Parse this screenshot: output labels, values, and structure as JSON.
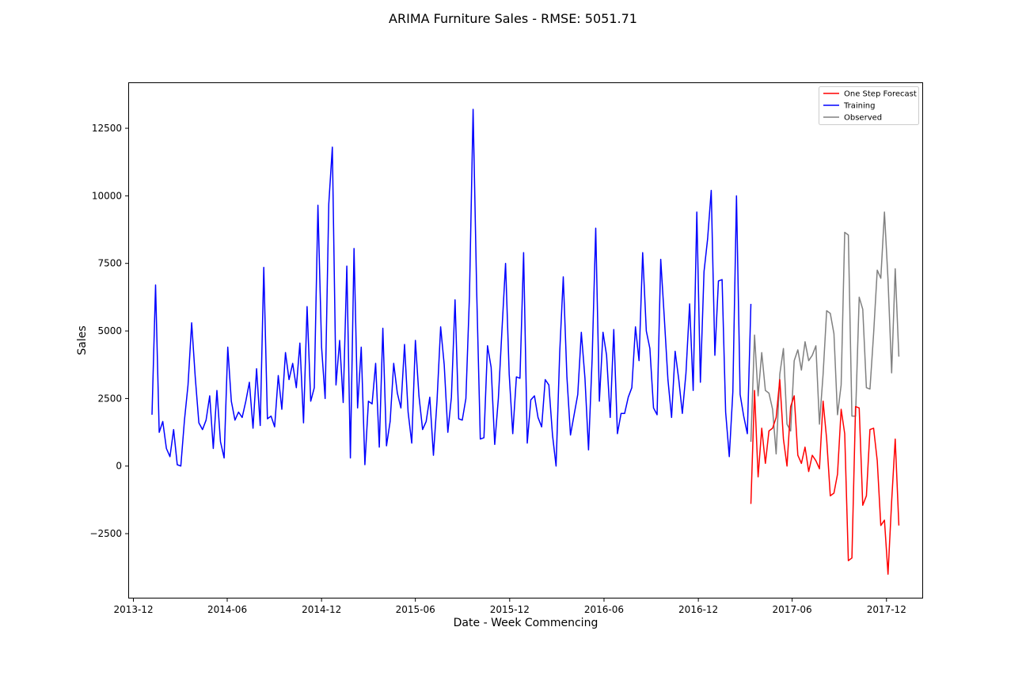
{
  "chart_data": {
    "type": "line",
    "title": "ARIMA Furniture Sales - RMSE: 5051.71",
    "xlabel": "Date - Week Commencing",
    "ylabel": "Sales",
    "x_ticks": [
      "2013-12",
      "2014-06",
      "2014-12",
      "2015-06",
      "2015-12",
      "2016-06",
      "2016-12",
      "2017-06",
      "2017-12"
    ],
    "y_ticks": [
      -2500,
      0,
      2500,
      5000,
      7500,
      10000,
      12500
    ],
    "y_tick_labels": [
      "−2500",
      "0",
      "2500",
      "5000",
      "7500",
      "10000",
      "12500"
    ],
    "xlim": [
      "2013-11-21",
      "2018-02-10"
    ],
    "ylim": [
      -4900,
      14200
    ],
    "grid": false,
    "legend_position": "top-right",
    "series": [
      {
        "name": "One Step Forecast",
        "color": "#ff0000",
        "start_date": "2017-03-13",
        "step_days": 7,
        "values": [
          -1400,
          2800,
          -400,
          1400,
          100,
          1300,
          1400,
          1800,
          3200,
          1000,
          0,
          2200,
          2600,
          400,
          100,
          700,
          -200,
          400,
          200,
          -100,
          2400,
          1000,
          -1100,
          -1000,
          -300,
          2100,
          1200,
          -3500,
          -3400,
          2200,
          2150,
          -1450,
          -1100,
          1350,
          1400,
          200,
          -2200,
          -2000,
          -4000,
          -1300,
          1000,
          -2200
        ]
      },
      {
        "name": "Training",
        "color": "#0000ff",
        "start_date": "2014-01-06",
        "step_days": 7,
        "values": [
          1900,
          6700,
          1250,
          1650,
          650,
          350,
          1350,
          50,
          0,
          1700,
          3000,
          5300,
          3300,
          1600,
          1350,
          1700,
          2600,
          650,
          2800,
          900,
          300,
          4400,
          2400,
          1700,
          2000,
          1800,
          2400,
          3100,
          1400,
          3600,
          1500,
          7350,
          1750,
          1850,
          1450,
          3350,
          2100,
          4200,
          3200,
          3800,
          2900,
          4550,
          1600,
          5900,
          2400,
          2900,
          9650,
          4400,
          2500,
          9700,
          11800,
          3000,
          4650,
          2350,
          7400,
          300,
          8050,
          2150,
          4400,
          50,
          2400,
          2300,
          3800,
          700,
          5100,
          750,
          1650,
          3800,
          2700,
          2150,
          4500,
          2000,
          850,
          4650,
          2600,
          1350,
          1650,
          2550,
          400,
          2400,
          5150,
          3750,
          1250,
          2550,
          6150,
          1750,
          1700,
          2500,
          6300,
          13200,
          6500,
          1000,
          1050,
          4450,
          3650,
          800,
          2500,
          5000,
          7500,
          3400,
          1200,
          3300,
          3250,
          7900,
          850,
          2450,
          2600,
          1800,
          1450,
          3200,
          3000,
          1150,
          0,
          4200,
          7000,
          3300,
          1150,
          1900,
          2650,
          4950,
          3250,
          600,
          4000,
          8800,
          2400,
          4950,
          4100,
          1800,
          5050,
          1200,
          1950,
          1950,
          2550,
          2900,
          5150,
          3900,
          7900,
          5000,
          4350,
          2150,
          1900,
          7650,
          5500,
          3200,
          1800,
          4250,
          3200,
          1950,
          3450,
          6000,
          2800,
          9400,
          3100,
          7200,
          8400,
          10200,
          4100,
          6850,
          6900,
          2000,
          350,
          2750,
          10000,
          2650,
          1850,
          1200,
          6000
        ]
      },
      {
        "name": "Observed",
        "color": "#808080",
        "start_date": "2017-03-13",
        "step_days": 7,
        "values": [
          900,
          4850,
          2600,
          4200,
          2800,
          2700,
          2100,
          450,
          3400,
          4350,
          1550,
          1300,
          3900,
          4300,
          3550,
          4600,
          3900,
          4100,
          4450,
          1550,
          3400,
          5750,
          5650,
          4900,
          1900,
          3000,
          8650,
          8550,
          1850,
          1850,
          6250,
          5800,
          2900,
          2850,
          4900,
          7250,
          6950,
          9400,
          6900,
          3450,
          7300,
          4050
        ]
      }
    ]
  }
}
